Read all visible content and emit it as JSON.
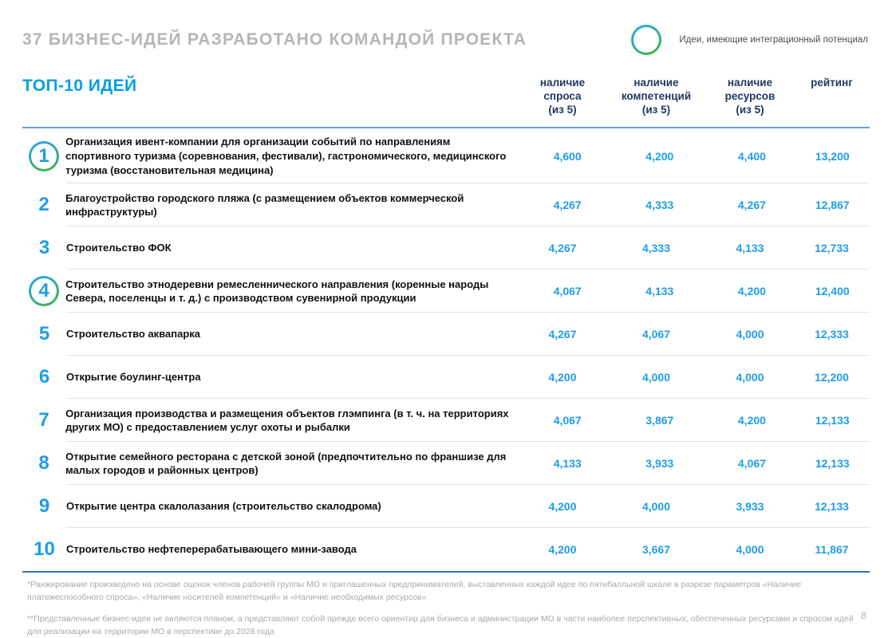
{
  "header": {
    "title": "37 БИЗНЕС-ИДЕЙ РАЗРАБОТАНО КОМАНДОЙ ПРОЕКТА",
    "legend_label": "Идеи, имеющие интеграционный потенциал"
  },
  "table": {
    "title": "ТОП-10 ИДЕЙ",
    "columns": [
      "наличие\nспроса\n(из 5)",
      "наличие\nкомпетенций\n(из 5)",
      "наличие\nресурсов\n(из 5)",
      "рейтинг"
    ],
    "rows": [
      {
        "rank": "1",
        "circled": true,
        "idea": "Организация ивент-компании для организации событий по направлениям спортивного туризма (соревнования, фестивали), гастрономического, медицинского туризма (восстановительная медицина)",
        "demand": "4,600",
        "competencies": "4,200",
        "resources": "4,400",
        "rating": "13,200"
      },
      {
        "rank": "2",
        "circled": false,
        "idea": "Благоустройство городского пляжа (с размещением объектов коммерческой инфраструктуры)",
        "demand": "4,267",
        "competencies": "4,333",
        "resources": "4,267",
        "rating": "12,867"
      },
      {
        "rank": "3",
        "circled": false,
        "idea": "Строительство ФОК",
        "demand": "4,267",
        "competencies": "4,333",
        "resources": "4,133",
        "rating": "12,733"
      },
      {
        "rank": "4",
        "circled": true,
        "idea": "Строительство этнодеревни ремесленнического направления (коренные народы Севера, поселенцы и т. д.) с производством сувенирной продукции",
        "demand": "4,067",
        "competencies": "4,133",
        "resources": "4,200",
        "rating": "12,400"
      },
      {
        "rank": "5",
        "circled": false,
        "idea": "Строительство аквапарка",
        "demand": "4,267",
        "competencies": "4,067",
        "resources": "4,000",
        "rating": "12,333"
      },
      {
        "rank": "6",
        "circled": false,
        "idea": "Открытие боулинг-центра",
        "demand": "4,200",
        "competencies": "4,000",
        "resources": "4,000",
        "rating": "12,200"
      },
      {
        "rank": "7",
        "circled": false,
        "idea": "Организация производства и размещения объектов глэмпинга (в т. ч. на территориях других МО) с предоставлением услуг охоты и рыбалки",
        "demand": "4,067",
        "competencies": "3,867",
        "resources": "4,200",
        "rating": "12,133"
      },
      {
        "rank": "8",
        "circled": false,
        "idea": "Открытие семейного ресторана с детской зоной (предпочтительно по франшизе для малых городов и районных центров)",
        "demand": "4,133",
        "competencies": "3,933",
        "resources": "4,067",
        "rating": "12,133"
      },
      {
        "rank": "9",
        "circled": false,
        "idea": "Открытие центра скалолазания (строительство скалодрома)",
        "demand": "4,200",
        "competencies": "4,000",
        "resources": "3,933",
        "rating": "12,133"
      },
      {
        "rank": "10",
        "circled": false,
        "idea": "Строительство нефтеперерабатывающего мини-завода",
        "demand": "4,200",
        "competencies": "3,667",
        "resources": "4,000",
        "rating": "11,867"
      }
    ]
  },
  "footnotes": [
    "*Ранжирование произведено на основе оценок членов рабочей группы МО и приглашенных предпринимателей, выставленных каждой идее по пятибалльной шкале в разрезе параметров «Наличие платежеспособного спроса», «Наличие носителей компетенций» и «Наличие необходимых ресурсов»",
    "**Представленные бизнес-идеи не являются планом, а представляют собой прежде всего ориентир для бизнеса и администрации МО в части наиболее перспективных, обеспеченных ресурсами и спросом идей для реализации на территории МО в перспективе до 2028 года"
  ],
  "page_number": "8",
  "colors": {
    "accent_blue": "#009fe3",
    "value_blue": "#1e9de8",
    "header_navy": "#1f3864",
    "title_gray": "#b5b5b5",
    "ring_gradient_top": "#2aa7e0",
    "ring_gradient_bottom": "#3bb54a",
    "divider_blue": "#2e75b6"
  }
}
